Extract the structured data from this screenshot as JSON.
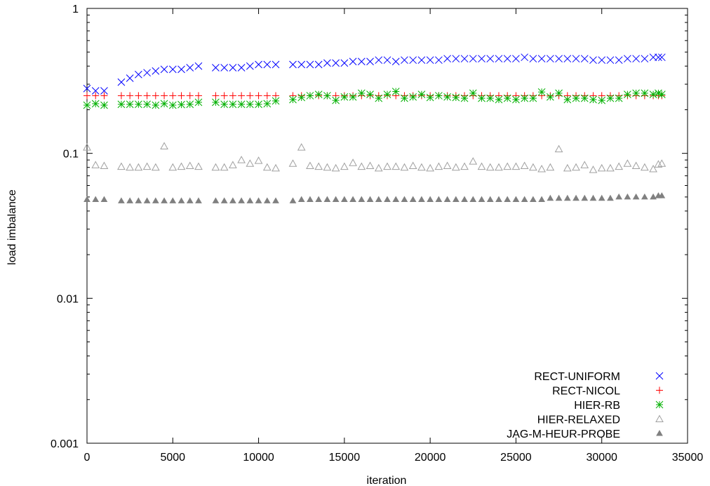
{
  "chart_data": {
    "type": "scatter",
    "title": "",
    "xlabel": "iteration",
    "ylabel": "load imbalance",
    "xlim": [
      0,
      35000
    ],
    "ylim": [
      0.001,
      1
    ],
    "yscale": "log",
    "grid": false,
    "legend_position": "bottom-right",
    "x_ticks": [
      0,
      5000,
      10000,
      15000,
      20000,
      25000,
      30000,
      35000
    ],
    "x_tick_labels": [
      "0",
      "5000",
      "10000",
      "15000",
      "20000",
      "25000",
      "30000",
      "35000"
    ],
    "y_ticks": [
      0.001,
      0.01,
      0.1,
      1
    ],
    "y_tick_labels": [
      "0.001",
      "0.01",
      "0.1",
      "1"
    ],
    "series": [
      {
        "name": "RECT-UNIFORM",
        "marker": "x",
        "color": "#0000ff",
        "x": [
          0,
          500,
          1000,
          2000,
          2500,
          3000,
          3500,
          4000,
          4500,
          5000,
          5500,
          6000,
          6500,
          7500,
          8000,
          8500,
          9000,
          9500,
          10000,
          10500,
          11000,
          12000,
          12500,
          13000,
          13500,
          14000,
          14500,
          15000,
          15500,
          16000,
          16500,
          17000,
          17500,
          18000,
          18500,
          19000,
          19500,
          20000,
          20500,
          21000,
          21500,
          22000,
          22500,
          23000,
          23500,
          24000,
          24500,
          25000,
          25500,
          26000,
          26500,
          27000,
          27500,
          28000,
          28500,
          29000,
          29500,
          30000,
          30500,
          31000,
          31500,
          32000,
          32500,
          33000,
          33300,
          33500
        ],
        "y": [
          0.28,
          0.27,
          0.27,
          0.31,
          0.33,
          0.35,
          0.36,
          0.37,
          0.38,
          0.38,
          0.38,
          0.39,
          0.4,
          0.39,
          0.39,
          0.39,
          0.39,
          0.4,
          0.41,
          0.41,
          0.41,
          0.41,
          0.41,
          0.41,
          0.41,
          0.42,
          0.42,
          0.42,
          0.43,
          0.43,
          0.43,
          0.44,
          0.44,
          0.43,
          0.44,
          0.44,
          0.44,
          0.44,
          0.44,
          0.45,
          0.45,
          0.45,
          0.45,
          0.45,
          0.45,
          0.45,
          0.45,
          0.45,
          0.46,
          0.45,
          0.45,
          0.45,
          0.45,
          0.45,
          0.45,
          0.45,
          0.44,
          0.44,
          0.44,
          0.44,
          0.45,
          0.45,
          0.45,
          0.46,
          0.46,
          0.46
        ]
      },
      {
        "name": "RECT-NICOL",
        "marker": "+",
        "color": "#ff0000",
        "x": [
          0,
          500,
          1000,
          2000,
          2500,
          3000,
          3500,
          4000,
          4500,
          5000,
          5500,
          6000,
          6500,
          7500,
          8000,
          8500,
          9000,
          9500,
          10000,
          10500,
          11000,
          12000,
          12500,
          13000,
          13500,
          14000,
          14500,
          15000,
          15500,
          16000,
          16500,
          17000,
          17500,
          18000,
          18500,
          19000,
          19500,
          20000,
          20500,
          21000,
          21500,
          22000,
          22500,
          23000,
          23500,
          24000,
          24500,
          25000,
          25500,
          26000,
          26500,
          27000,
          27500,
          28000,
          28500,
          29000,
          29500,
          30000,
          30500,
          31000,
          31500,
          32000,
          32500,
          33000,
          33300,
          33500
        ],
        "y": [
          0.25,
          0.25,
          0.25,
          0.25,
          0.25,
          0.25,
          0.25,
          0.25,
          0.25,
          0.25,
          0.25,
          0.25,
          0.25,
          0.25,
          0.25,
          0.25,
          0.25,
          0.25,
          0.25,
          0.25,
          0.25,
          0.25,
          0.25,
          0.25,
          0.25,
          0.25,
          0.25,
          0.25,
          0.25,
          0.25,
          0.25,
          0.25,
          0.25,
          0.25,
          0.25,
          0.25,
          0.25,
          0.25,
          0.25,
          0.25,
          0.25,
          0.25,
          0.25,
          0.25,
          0.25,
          0.25,
          0.25,
          0.25,
          0.25,
          0.25,
          0.25,
          0.25,
          0.25,
          0.25,
          0.25,
          0.25,
          0.25,
          0.25,
          0.25,
          0.25,
          0.25,
          0.25,
          0.25,
          0.25,
          0.25,
          0.25
        ]
      },
      {
        "name": "HIER-RB",
        "marker": "*",
        "color": "#00b000",
        "x": [
          0,
          500,
          1000,
          2000,
          2500,
          3000,
          3500,
          4000,
          4500,
          5000,
          5500,
          6000,
          6500,
          7500,
          8000,
          8500,
          9000,
          9500,
          10000,
          10500,
          11000,
          12000,
          12500,
          13000,
          13500,
          14000,
          14500,
          15000,
          15500,
          16000,
          16500,
          17000,
          17500,
          18000,
          18500,
          19000,
          19500,
          20000,
          20500,
          21000,
          21500,
          22000,
          22500,
          23000,
          23500,
          24000,
          24500,
          25000,
          25500,
          26000,
          26500,
          27000,
          27500,
          28000,
          28500,
          29000,
          29500,
          30000,
          30500,
          31000,
          31500,
          32000,
          32500,
          33000,
          33300,
          33500
        ],
        "y": [
          0.215,
          0.22,
          0.215,
          0.218,
          0.218,
          0.218,
          0.218,
          0.215,
          0.22,
          0.215,
          0.217,
          0.218,
          0.225,
          0.225,
          0.218,
          0.218,
          0.218,
          0.218,
          0.218,
          0.22,
          0.23,
          0.235,
          0.243,
          0.25,
          0.255,
          0.25,
          0.232,
          0.245,
          0.245,
          0.26,
          0.255,
          0.24,
          0.255,
          0.267,
          0.24,
          0.245,
          0.255,
          0.243,
          0.25,
          0.245,
          0.243,
          0.24,
          0.26,
          0.24,
          0.24,
          0.235,
          0.24,
          0.235,
          0.24,
          0.24,
          0.265,
          0.245,
          0.26,
          0.235,
          0.24,
          0.24,
          0.235,
          0.232,
          0.24,
          0.24,
          0.255,
          0.26,
          0.26,
          0.255,
          0.26,
          0.255
        ]
      },
      {
        "name": "HIER-RELAXED",
        "marker": "triangle-open",
        "color": "#a0a0a0",
        "x": [
          0,
          500,
          1000,
          2000,
          2500,
          3000,
          3500,
          4000,
          4500,
          5000,
          5500,
          6000,
          6500,
          7500,
          8000,
          8500,
          9000,
          9500,
          10000,
          10500,
          11000,
          12000,
          12500,
          13000,
          13500,
          14000,
          14500,
          15000,
          15500,
          16000,
          16500,
          17000,
          17500,
          18000,
          18500,
          19000,
          19500,
          20000,
          20500,
          21000,
          21500,
          22000,
          22500,
          23000,
          23500,
          24000,
          24500,
          25000,
          25500,
          26000,
          26500,
          27000,
          27500,
          28000,
          28500,
          29000,
          29500,
          30000,
          30500,
          31000,
          31500,
          32000,
          32500,
          33000,
          33300,
          33500
        ],
        "y": [
          0.11,
          0.083,
          0.082,
          0.081,
          0.08,
          0.08,
          0.081,
          0.08,
          0.112,
          0.08,
          0.081,
          0.082,
          0.081,
          0.08,
          0.08,
          0.083,
          0.09,
          0.085,
          0.089,
          0.08,
          0.079,
          0.085,
          0.11,
          0.082,
          0.081,
          0.08,
          0.079,
          0.081,
          0.086,
          0.081,
          0.082,
          0.079,
          0.081,
          0.081,
          0.08,
          0.082,
          0.08,
          0.079,
          0.081,
          0.082,
          0.08,
          0.081,
          0.088,
          0.081,
          0.08,
          0.08,
          0.081,
          0.081,
          0.082,
          0.08,
          0.078,
          0.08,
          0.107,
          0.079,
          0.08,
          0.083,
          0.077,
          0.079,
          0.079,
          0.081,
          0.085,
          0.082,
          0.08,
          0.078,
          0.084,
          0.085
        ]
      },
      {
        "name": "JAG-M-HEUR-PROBE",
        "marker": "triangle-filled",
        "color": "#808080",
        "x": [
          0,
          500,
          1000,
          2000,
          2500,
          3000,
          3500,
          4000,
          4500,
          5000,
          5500,
          6000,
          6500,
          7500,
          8000,
          8500,
          9000,
          9500,
          10000,
          10500,
          11000,
          12000,
          12500,
          13000,
          13500,
          14000,
          14500,
          15000,
          15500,
          16000,
          16500,
          17000,
          17500,
          18000,
          18500,
          19000,
          19500,
          20000,
          20500,
          21000,
          21500,
          22000,
          22500,
          23000,
          23500,
          24000,
          24500,
          25000,
          25500,
          26000,
          26500,
          27000,
          27500,
          28000,
          28500,
          29000,
          29500,
          30000,
          30500,
          31000,
          31500,
          32000,
          32500,
          33000,
          33300,
          33500
        ],
        "y": [
          0.048,
          0.048,
          0.048,
          0.047,
          0.047,
          0.047,
          0.047,
          0.047,
          0.047,
          0.047,
          0.047,
          0.047,
          0.047,
          0.047,
          0.047,
          0.047,
          0.047,
          0.047,
          0.047,
          0.047,
          0.047,
          0.047,
          0.048,
          0.048,
          0.048,
          0.048,
          0.048,
          0.048,
          0.048,
          0.048,
          0.048,
          0.048,
          0.048,
          0.048,
          0.048,
          0.048,
          0.048,
          0.048,
          0.048,
          0.048,
          0.048,
          0.048,
          0.048,
          0.048,
          0.048,
          0.048,
          0.048,
          0.048,
          0.048,
          0.048,
          0.048,
          0.049,
          0.049,
          0.049,
          0.049,
          0.049,
          0.049,
          0.049,
          0.049,
          0.05,
          0.05,
          0.05,
          0.05,
          0.05,
          0.051,
          0.051
        ]
      }
    ]
  }
}
